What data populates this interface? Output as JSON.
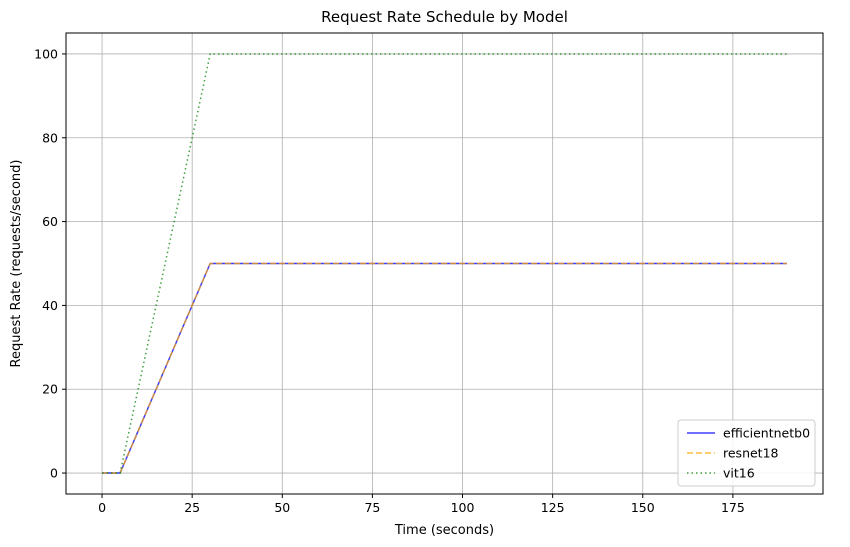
{
  "chart_data": {
    "type": "line",
    "title": "Request Rate Schedule by Model",
    "xlabel": "Time (seconds)",
    "ylabel": "Request Rate (requests/second)",
    "xlim": [
      -10,
      200
    ],
    "ylim": [
      -5,
      105
    ],
    "xticks": [
      0,
      25,
      50,
      75,
      100,
      125,
      150,
      175
    ],
    "yticks": [
      0,
      20,
      40,
      60,
      80,
      100
    ],
    "grid": true,
    "legend_position": "lower-right",
    "series": [
      {
        "name": "efficientnetb0",
        "color": "#0000ff",
        "style": "solid",
        "x": [
          0,
          5,
          30,
          190
        ],
        "y": [
          0,
          0,
          50,
          50
        ]
      },
      {
        "name": "resnet18",
        "color": "#ffa500",
        "style": "dashed",
        "x": [
          0,
          5,
          30,
          190
        ],
        "y": [
          0,
          0,
          50,
          50
        ]
      },
      {
        "name": "vit16",
        "color": "#008000",
        "style": "dotted",
        "x": [
          0,
          5,
          30,
          190
        ],
        "y": [
          0,
          0,
          100,
          100
        ]
      }
    ]
  }
}
